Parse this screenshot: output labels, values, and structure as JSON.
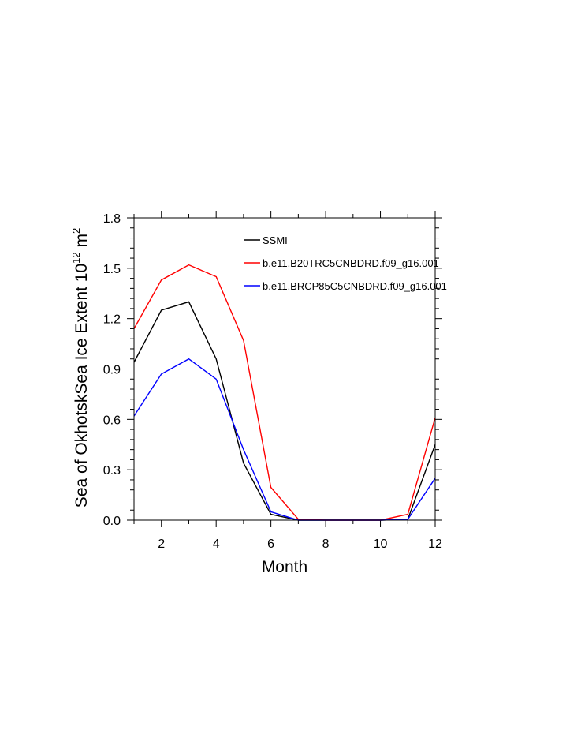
{
  "chart_data": {
    "type": "line",
    "title": "",
    "xlabel": "Month",
    "ylabel": "Sea of OkhotskSea Ice Extent 10",
    "ylabel_exp": "12",
    "ylabel_unit": " m",
    "ylabel_unit_exp": "2",
    "xlim": [
      1,
      12
    ],
    "ylim": [
      0,
      1.8
    ],
    "x_ticks": [
      2,
      4,
      6,
      8,
      10,
      12
    ],
    "y_ticks": [
      0.0,
      0.3,
      0.6,
      0.9,
      1.2,
      1.5,
      1.8
    ],
    "y_tick_labels": [
      "0.0",
      "0.3",
      "0.6",
      "0.9",
      "1.2",
      "1.5",
      "1.8"
    ],
    "x_tick_labels": [
      "2",
      "4",
      "6",
      "8",
      "10",
      "12"
    ],
    "legend_position": "top-right",
    "x": [
      1,
      2,
      3,
      4,
      5,
      6,
      7,
      8,
      9,
      10,
      11,
      12
    ],
    "series": [
      {
        "name": "SSMI",
        "color": "#000000",
        "values": [
          0.94,
          1.25,
          1.3,
          0.96,
          0.34,
          0.035,
          0.0,
          0.0,
          0.0,
          0.0,
          0.005,
          0.45
        ]
      },
      {
        "name": "b.e11.B20TRC5CNBDRD.f09_g16.001",
        "color": "#ff0000",
        "values": [
          1.14,
          1.43,
          1.52,
          1.45,
          1.07,
          0.195,
          0.005,
          0.0,
          0.0,
          0.0,
          0.035,
          0.61
        ]
      },
      {
        "name": "b.e11.BRCP85C5CNBDRD.f09_g16.001",
        "color": "#0000ff",
        "values": [
          0.62,
          0.87,
          0.96,
          0.84,
          0.42,
          0.05,
          0.0,
          0.0,
          0.0,
          0.0,
          0.005,
          0.25
        ]
      }
    ]
  }
}
